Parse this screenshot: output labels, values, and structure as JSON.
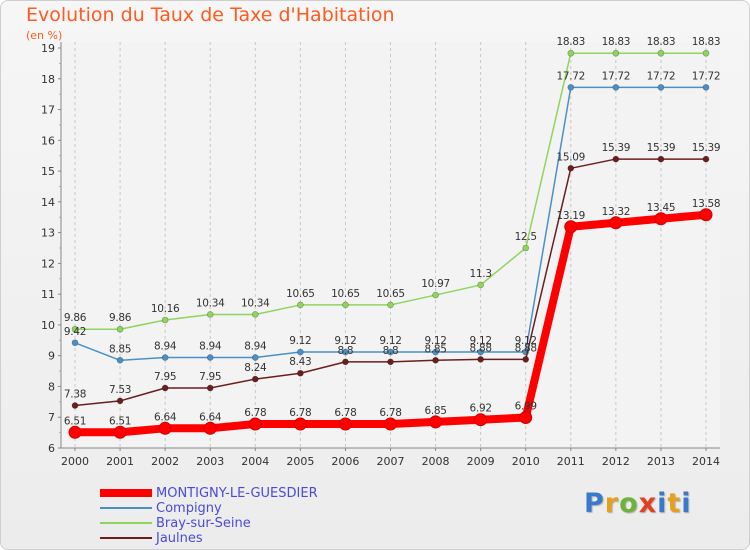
{
  "chart_data": {
    "type": "line",
    "title": "Evolution du Taux de Taxe d'Habitation",
    "subtitle": "(en %)",
    "categories": [
      "2000",
      "2001",
      "2002",
      "2003",
      "2004",
      "2005",
      "2006",
      "2007",
      "2008",
      "2009",
      "2010",
      "2011",
      "2012",
      "2013",
      "2014"
    ],
    "ylim": [
      6,
      19
    ],
    "yticks": [
      "6",
      "7",
      "8",
      "9",
      "10",
      "11",
      "12",
      "13",
      "14",
      "15",
      "16",
      "17",
      "18",
      "19"
    ],
    "grid": "vertical-dashed",
    "legend_position": "bottom-left",
    "series": [
      {
        "name": "MONTIGNY-LE-GUESDIER",
        "color": "#ff0000",
        "values": [
          6.51,
          6.51,
          6.64,
          6.64,
          6.78,
          6.78,
          6.78,
          6.78,
          6.85,
          6.92,
          6.99,
          13.19,
          13.32,
          13.45,
          13.58
        ],
        "labels": [
          "6.51",
          "6.51",
          "6.64",
          "6.64",
          "6.78",
          "6.78",
          "6.78",
          "6.78",
          "6.85",
          "6.92",
          "6.99",
          "13.19",
          "13.32",
          "13.45",
          "13.58"
        ]
      },
      {
        "name": "Compigny",
        "color": "#4a90c8",
        "values": [
          9.42,
          8.85,
          8.94,
          8.94,
          8.94,
          9.12,
          9.12,
          9.12,
          9.12,
          9.12,
          9.12,
          17.72,
          17.72,
          17.72,
          17.72
        ],
        "labels": [
          "9.42",
          "8.85",
          "8.94",
          "8.94",
          "8.94",
          "9.12",
          "9.12",
          "9.12",
          "9.12",
          "9.12",
          "9.12",
          "17.72",
          "17.72",
          "17.72",
          "17.72"
        ]
      },
      {
        "name": "Bray-sur-Seine",
        "color": "#8fd45c",
        "values": [
          9.86,
          9.86,
          10.16,
          10.34,
          10.34,
          10.65,
          10.65,
          10.65,
          10.97,
          11.3,
          12.5,
          18.83,
          18.83,
          18.83,
          18.83
        ],
        "labels": [
          "9.86",
          "9.86",
          "10.16",
          "10.34",
          "10.34",
          "10.65",
          "10.65",
          "10.65",
          "10.97",
          "11.3",
          "12.5",
          "18.83",
          "18.83",
          "18.83",
          "18.83"
        ]
      },
      {
        "name": "Jaulnes",
        "color": "#6b1e1e",
        "values": [
          7.38,
          7.53,
          7.95,
          7.95,
          8.24,
          8.43,
          8.8,
          8.8,
          8.85,
          8.88,
          8.88,
          15.09,
          15.39,
          15.39,
          15.39
        ],
        "labels": [
          "7.38",
          "7.53",
          "7.95",
          "7.95",
          "8.24",
          "8.43",
          "8.8",
          "8.8",
          "8.85",
          "8.88",
          "8.88",
          "15.09",
          "15.39",
          "15.39",
          "15.39"
        ]
      }
    ]
  },
  "logo": {
    "letters": [
      "P",
      "r",
      "o",
      "x",
      "i",
      "t",
      "i"
    ]
  }
}
